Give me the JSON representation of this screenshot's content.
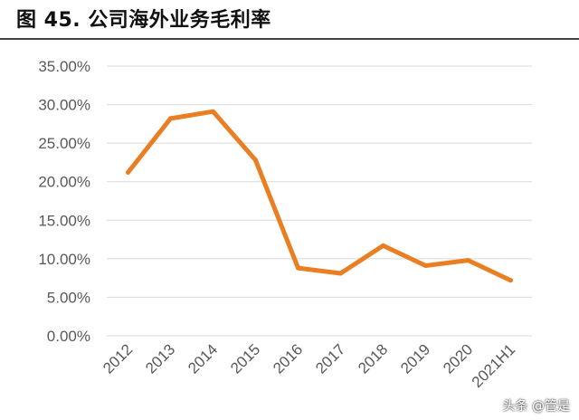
{
  "title": "图 45. 公司海外业务毛利率",
  "watermark": "头条 @管是",
  "chart_data": {
    "type": "line",
    "title": "图 45. 公司海外业务毛利率",
    "categories": [
      "2012",
      "2013",
      "2014",
      "2015",
      "2016",
      "2017",
      "2018",
      "2019",
      "2020",
      "2021H1"
    ],
    "series": [
      {
        "values": [
          21.2,
          28.2,
          29.1,
          22.8,
          8.8,
          8.1,
          11.7,
          9.1,
          9.8,
          7.2
        ],
        "color": "#E97F22"
      }
    ],
    "y_ticks": [
      "0.00%",
      "5.00%",
      "10.00%",
      "15.00%",
      "20.00%",
      "25.00%",
      "30.00%",
      "35.00%"
    ],
    "ylim": [
      0,
      35
    ],
    "y_unit": "%",
    "grid": true,
    "legend": "none",
    "xlabel": "",
    "ylabel": ""
  }
}
